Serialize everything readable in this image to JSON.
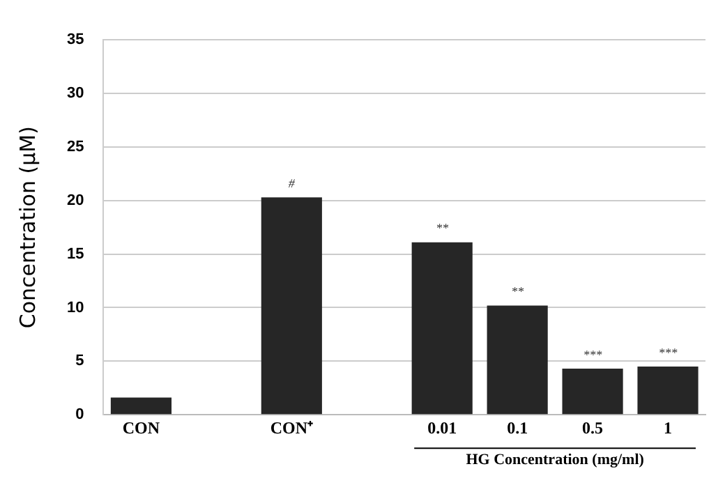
{
  "chart_data": {
    "type": "bar",
    "ylabel": "Concentration (μM)",
    "xlabel": "HG Concentration (mg/ml)",
    "categories": [
      "CON",
      null,
      "CON⁺",
      null,
      "0.01",
      "0.1",
      "0.5",
      "1"
    ],
    "values": [
      1.6,
      null,
      20.3,
      null,
      16.1,
      10.2,
      4.3,
      4.5
    ],
    "color": "#262626",
    "ylim": [
      0,
      35
    ],
    "yticks": [
      0,
      5,
      10,
      15,
      20,
      25,
      30,
      35
    ],
    "grid": "y",
    "legend": false,
    "annotations": [
      {
        "text": "#",
        "x": "CON⁺",
        "y": 20.3
      },
      {
        "text": "**",
        "x": "0.01",
        "y": 16.1
      },
      {
        "text": "**",
        "x": "0.1",
        "y": 10.2
      },
      {
        "text": "***",
        "x": "0.5",
        "y": 4.3
      },
      {
        "text": "***",
        "x": "1",
        "y": 4.5
      }
    ]
  }
}
